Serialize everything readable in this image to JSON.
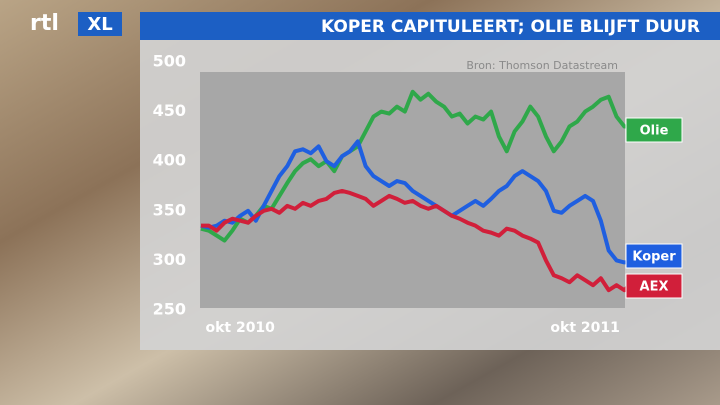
{
  "logo": [
    "rtl",
    "XL"
  ],
  "chart_data": {
    "type": "line",
    "title": "KOPER CAPITULEERT; OLIE BLIJFT DUUR",
    "source": "Bron: Thomson Datastream",
    "categories": [
      null,
      null,
      null,
      null,
      null,
      "okt 2010",
      null,
      null,
      null,
      null,
      null,
      null,
      null,
      null,
      null,
      null,
      null,
      null,
      null,
      null,
      null,
      null,
      null,
      null,
      null,
      null,
      null,
      null,
      null,
      null,
      null,
      null,
      null,
      null,
      null,
      null,
      null,
      null,
      null,
      null,
      null,
      null,
      null,
      null,
      null,
      null,
      null,
      null,
      null,
      "okt 2011",
      null,
      null,
      null,
      null,
      null,
      null
    ],
    "ylim": [
      250,
      500
    ],
    "yticks": [
      250,
      300,
      350,
      400,
      450,
      500
    ],
    "series": [
      {
        "name": "Olie",
        "color": "#2fa84a",
        "values": [
          332,
          330,
          325,
          320,
          330,
          342,
          338,
          345,
          355,
          352,
          365,
          378,
          390,
          398,
          402,
          395,
          400,
          390,
          405,
          410,
          415,
          430,
          445,
          450,
          448,
          455,
          450,
          470,
          462,
          468,
          460,
          455,
          445,
          448,
          438,
          445,
          442,
          450,
          425,
          410,
          430,
          440,
          455,
          445,
          425,
          410,
          420,
          435,
          440,
          450,
          455,
          462,
          465,
          445,
          435,
          435
        ]
      },
      {
        "name": "Koper",
        "color": "#1f5fe0",
        "values": [
          335,
          333,
          335,
          340,
          338,
          345,
          350,
          340,
          355,
          370,
          385,
          395,
          410,
          412,
          408,
          415,
          400,
          395,
          405,
          410,
          420,
          395,
          385,
          380,
          375,
          380,
          378,
          370,
          365,
          360,
          355,
          350,
          345,
          350,
          355,
          360,
          355,
          362,
          370,
          375,
          385,
          390,
          385,
          380,
          370,
          350,
          348,
          355,
          360,
          365,
          360,
          340,
          310,
          300,
          298,
          298
        ]
      },
      {
        "name": "AEX",
        "color": "#d11f3a",
        "values": [
          335,
          335,
          330,
          338,
          342,
          340,
          338,
          345,
          350,
          352,
          348,
          355,
          352,
          358,
          355,
          360,
          362,
          368,
          370,
          368,
          365,
          362,
          355,
          360,
          365,
          362,
          358,
          360,
          355,
          352,
          355,
          350,
          345,
          342,
          338,
          335,
          330,
          328,
          325,
          332,
          330,
          325,
          322,
          318,
          300,
          285,
          282,
          278,
          285,
          280,
          275,
          282,
          270,
          275,
          270,
          278
        ]
      }
    ]
  }
}
